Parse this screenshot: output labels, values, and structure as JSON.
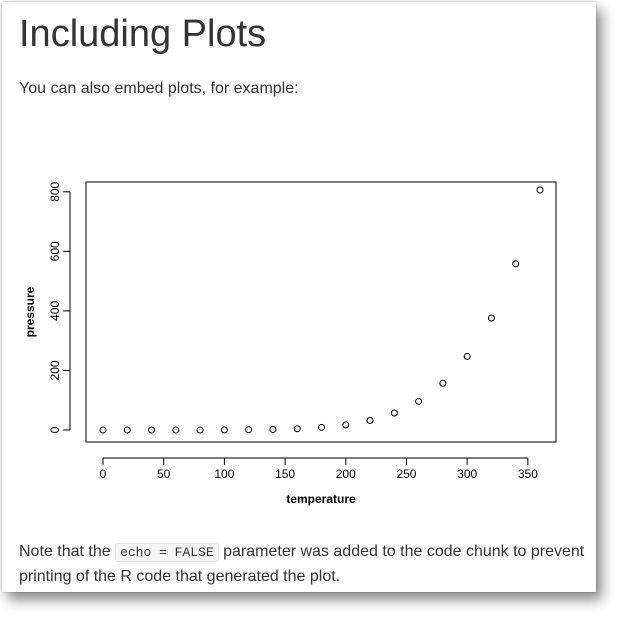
{
  "section": {
    "heading": "Including Plots",
    "intro": "You can also embed plots, for example:"
  },
  "note": {
    "before": "Note that the ",
    "code": "echo = FALSE",
    "after": " parameter was added to the code chunk to prevent printing of the R code that generated the plot."
  },
  "chart_data": {
    "type": "scatter",
    "title": "",
    "xlabel": "temperature",
    "ylabel": "pressure",
    "xlim": [
      0,
      360
    ],
    "ylim": [
      0,
      806
    ],
    "xticks": [
      0,
      50,
      100,
      150,
      200,
      250,
      300,
      350
    ],
    "yticks": [
      0,
      200,
      400,
      600,
      800
    ],
    "grid": false,
    "marker": "open-circle",
    "x": [
      0,
      20,
      40,
      60,
      80,
      100,
      120,
      140,
      160,
      180,
      200,
      220,
      240,
      260,
      280,
      300,
      320,
      340,
      360
    ],
    "y": [
      0.0002,
      0.0012,
      0.006,
      0.03,
      0.09,
      0.27,
      0.75,
      1.85,
      4.2,
      8.8,
      17.3,
      32.1,
      57,
      96,
      157,
      247,
      376,
      558,
      806
    ]
  }
}
